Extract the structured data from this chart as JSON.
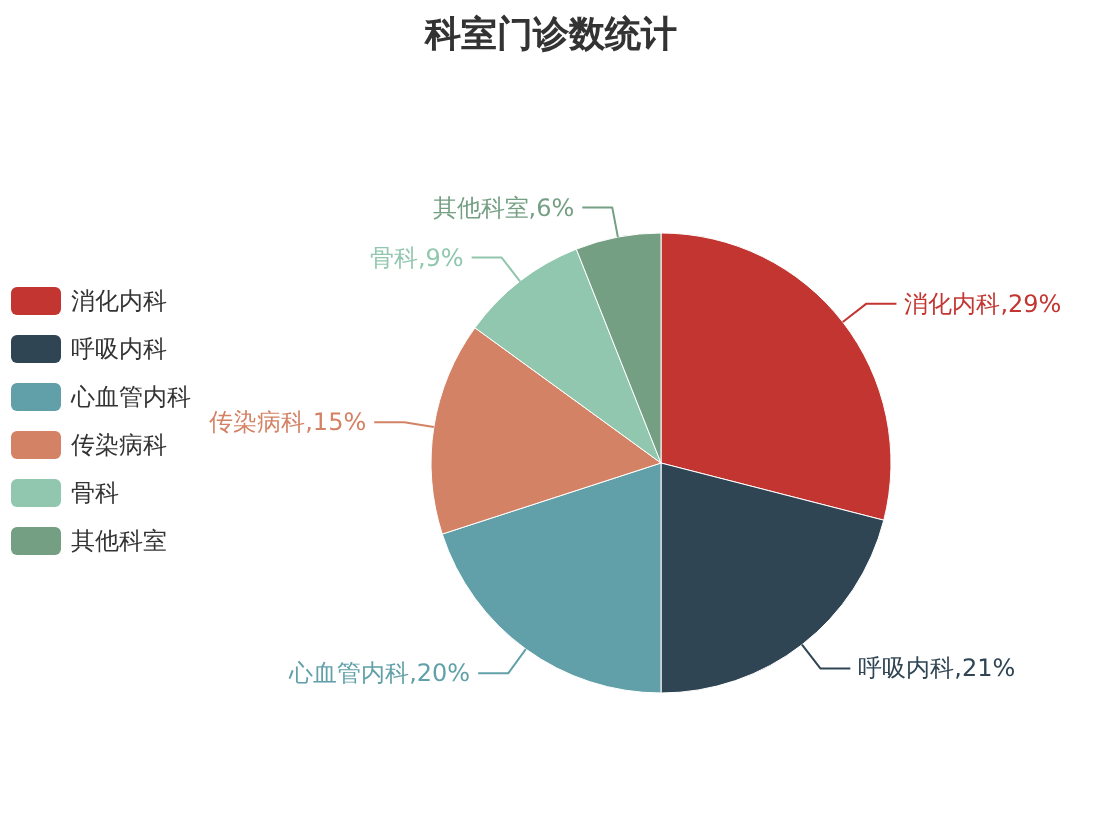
{
  "chart_data": {
    "type": "pie",
    "title": "科室门诊数统计",
    "categories": [
      "消化内科",
      "呼吸内科",
      "心血管内科",
      "传染病科",
      "骨科",
      "其他科室"
    ],
    "values": [
      29,
      21,
      20,
      15,
      9,
      6
    ],
    "colors": [
      "#c23531",
      "#2f4554",
      "#61a0a8",
      "#d48265",
      "#91c7ae",
      "#749f83"
    ],
    "value_labels": [
      "消化内科,29%",
      "呼吸内科,21%",
      "心血管内科,20%",
      "传染病科,15%",
      "骨科,9%",
      "其他科室,6%"
    ],
    "legend": "left"
  }
}
